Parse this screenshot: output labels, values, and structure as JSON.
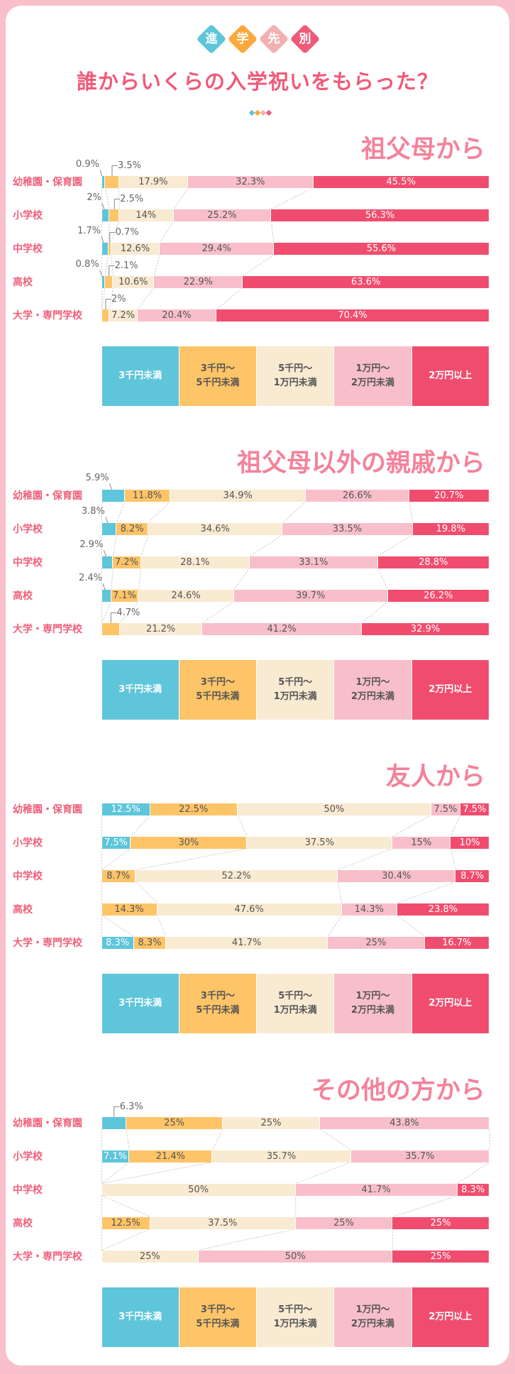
{
  "header": {
    "kicker": [
      "進",
      "学",
      "先",
      "別"
    ],
    "kicker_colors": [
      "#5ec5da",
      "#fba83c",
      "#f2b1b1",
      "#f05a78"
    ],
    "title": "誰からいくらの入学祝いをもらった？"
  },
  "colors": {
    "frame": "#f9c0cc",
    "label": "#f0607a",
    "section_title": "#f4829a"
  },
  "chart_data": {
    "type": "bar",
    "stacked": true,
    "orientation": "horizontal",
    "normalized_100": true,
    "categories": [
      "幼稚園・保育園",
      "小学校",
      "中学校",
      "高校",
      "大学・専門学校"
    ],
    "legend": {
      "labels": [
        "3千円未満",
        "3千円～\n5千円未満",
        "5千円～\n1万円未満",
        "1万円～\n2万円未満",
        "2万円以上"
      ],
      "colors": [
        "#5ec5da",
        "#fec468",
        "#f9ead2",
        "#f8bfca",
        "#f04d6e"
      ],
      "text_colors": [
        "#ffffff",
        "#555555",
        "#555555",
        "#555555",
        "#ffffff"
      ],
      "placement": "bottom"
    },
    "panels": [
      {
        "title": "祖父母から",
        "rows": [
          {
            "values": [
              "0.9%",
              "3.5%",
              "17.9%",
              "32.3%",
              "45.5%"
            ],
            "outside": [
              "left",
              "right",
              null,
              null,
              null
            ]
          },
          {
            "values": [
              "2%",
              "2.5%",
              "14%",
              "25.2%",
              "56.3%"
            ],
            "outside": [
              "left",
              "right",
              null,
              null,
              null
            ]
          },
          {
            "values": [
              "1.7%",
              "0.7%",
              "12.6%",
              "29.4%",
              "55.6%"
            ],
            "outside": [
              "left",
              "right",
              null,
              null,
              null
            ]
          },
          {
            "values": [
              "0.8%",
              "2.1%",
              "10.6%",
              "22.9%",
              "63.6%"
            ],
            "outside": [
              "left",
              "right",
              null,
              null,
              null
            ]
          },
          {
            "values": [
              null,
              "2%",
              "7.2%",
              "20.4%",
              "70.4%"
            ],
            "outside": [
              null,
              "right",
              null,
              null,
              null
            ]
          }
        ]
      },
      {
        "title": "祖父母以外の親戚から",
        "rows": [
          {
            "values": [
              "5.9%",
              "11.8%",
              "34.9%",
              "26.6%",
              "20.7%"
            ],
            "outside": [
              "left",
              null,
              null,
              null,
              null
            ]
          },
          {
            "values": [
              "3.8%",
              "8.2%",
              "34.6%",
              "33.5%",
              "19.8%"
            ],
            "outside": [
              "left",
              null,
              null,
              null,
              null
            ]
          },
          {
            "values": [
              "2.9%",
              "7.2%",
              "28.1%",
              "33.1%",
              "28.8%"
            ],
            "outside": [
              "left",
              null,
              null,
              null,
              null
            ]
          },
          {
            "values": [
              "2.4%",
              "7.1%",
              "24.6%",
              "39.7%",
              "26.2%"
            ],
            "outside": [
              "left",
              null,
              null,
              null,
              null
            ]
          },
          {
            "values": [
              null,
              "4.7%",
              "21.2%",
              "41.2%",
              "32.9%"
            ],
            "outside": [
              null,
              "right",
              null,
              null,
              null
            ]
          }
        ]
      },
      {
        "title": "友人から",
        "rows": [
          {
            "values": [
              "12.5%",
              "22.5%",
              "50%",
              "7.5%",
              "7.5%"
            ],
            "outside": [
              null,
              null,
              null,
              null,
              null
            ]
          },
          {
            "values": [
              "7.5%",
              "30%",
              "37.5%",
              "15%",
              "10%"
            ],
            "outside": [
              null,
              null,
              null,
              null,
              null
            ]
          },
          {
            "values": [
              null,
              "8.7%",
              "52.2%",
              "30.4%",
              "8.7%"
            ],
            "outside": [
              null,
              null,
              null,
              null,
              null
            ]
          },
          {
            "values": [
              null,
              "14.3%",
              "47.6%",
              "14.3%",
              "23.8%"
            ],
            "outside": [
              null,
              null,
              null,
              null,
              null
            ]
          },
          {
            "values": [
              "8.3%",
              "8.3%",
              "41.7%",
              "25%",
              "16.7%"
            ],
            "outside": [
              null,
              null,
              null,
              null,
              null
            ]
          }
        ]
      },
      {
        "title": "その他の方から",
        "rows": [
          {
            "values": [
              "6.3%",
              "25%",
              "25%",
              "43.8%",
              null
            ],
            "outside": [
              "right",
              null,
              null,
              null,
              null
            ]
          },
          {
            "values": [
              "7.1%",
              "21.4%",
              "35.7%",
              "35.7%",
              null
            ],
            "outside": [
              null,
              null,
              null,
              null,
              null
            ]
          },
          {
            "values": [
              null,
              null,
              "50%",
              "41.7%",
              "8.3%"
            ],
            "outside": [
              null,
              null,
              null,
              null,
              null
            ]
          },
          {
            "values": [
              null,
              "12.5%",
              "37.5%",
              "25%",
              "25%"
            ],
            "outside": [
              null,
              null,
              null,
              null,
              null
            ]
          },
          {
            "values": [
              null,
              null,
              "25%",
              "50%",
              "25%"
            ],
            "outside": [
              null,
              null,
              null,
              null,
              null
            ]
          }
        ]
      }
    ]
  }
}
